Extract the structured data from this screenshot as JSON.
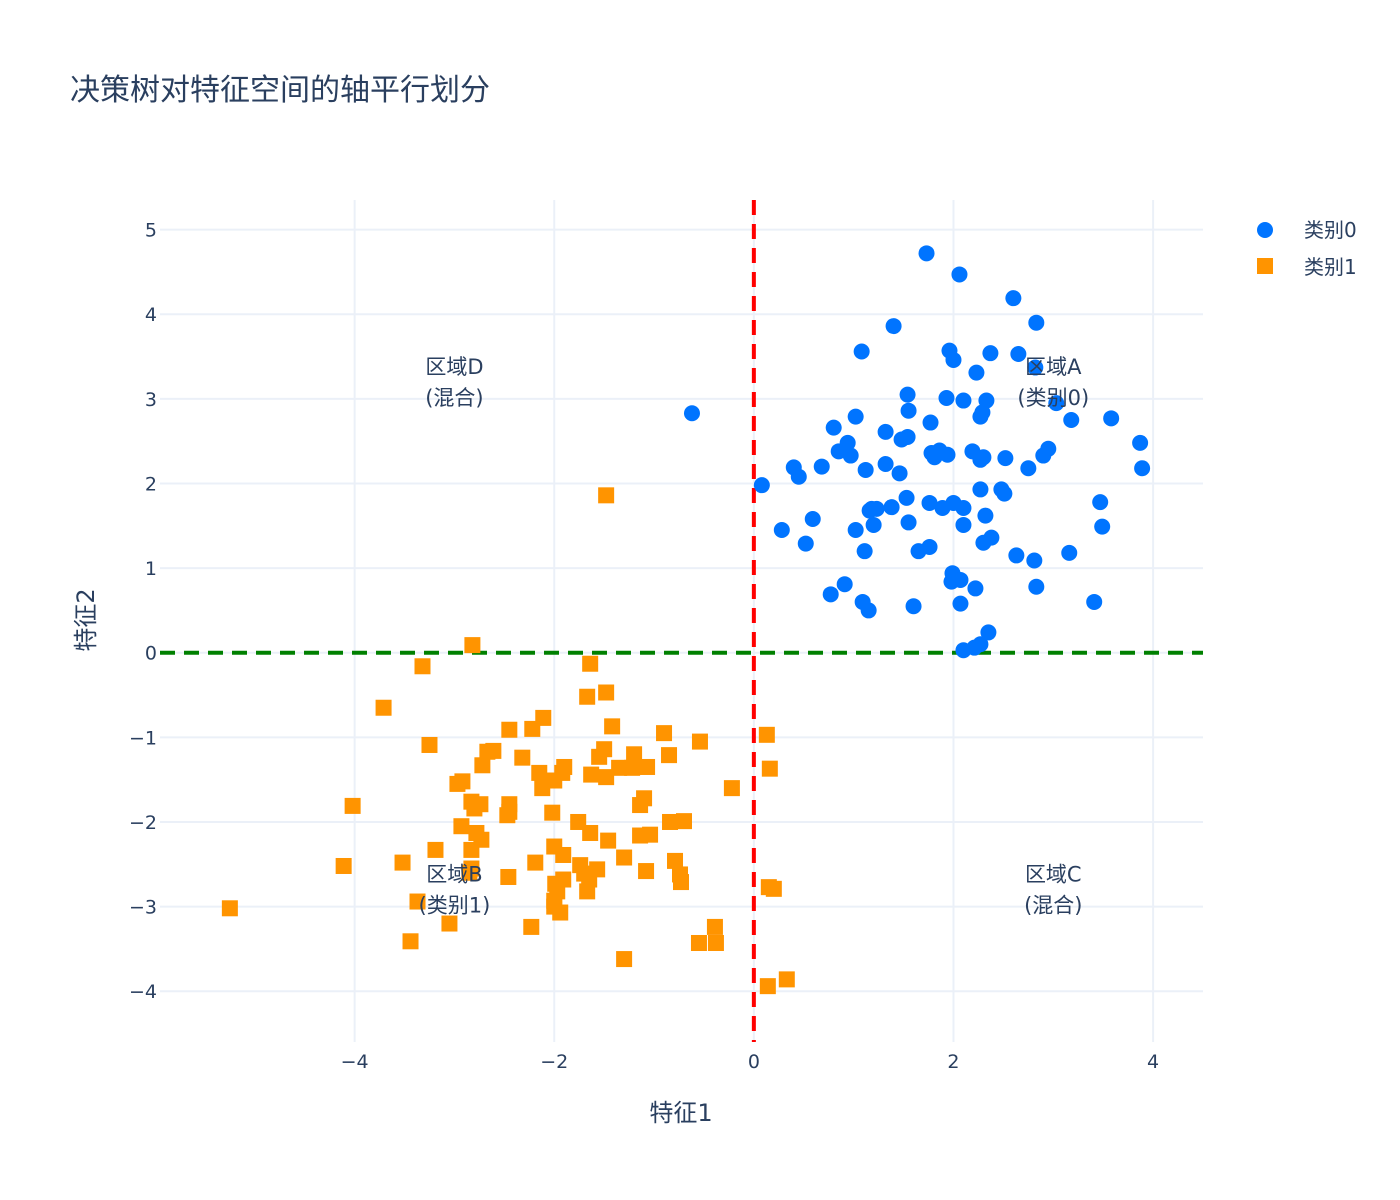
{
  "chart_data": {
    "type": "scatter",
    "title": "决策树对特征空间的轴平行划分",
    "xlabel": "特征1",
    "ylabel": "特征2",
    "xlim": [
      -5.95,
      4.5
    ],
    "ylim": [
      -4.6,
      5.35
    ],
    "x_ticks": [
      -4,
      -2,
      0,
      2,
      4
    ],
    "y_ticks": [
      -4,
      -3,
      -2,
      -1,
      0,
      1,
      2,
      3,
      4,
      5
    ],
    "x_tick_labels": [
      "−4",
      "−2",
      "0",
      "2",
      "4"
    ],
    "y_tick_labels": [
      "−4",
      "−3",
      "−2",
      "−1",
      "0",
      "1",
      "2",
      "3",
      "4",
      "5"
    ],
    "grid": true,
    "legend_position": "top-right",
    "splits": [
      {
        "orientation": "vertical",
        "value": 0,
        "color": "#ff0000",
        "style": "dashed"
      },
      {
        "orientation": "horizontal",
        "value": 0,
        "color": "#008000",
        "style": "dashed"
      }
    ],
    "regions": [
      {
        "line1": "区域A",
        "line2": "(类别0)",
        "x": 3,
        "y": 3.2
      },
      {
        "line1": "区域B",
        "line2": "(类别1)",
        "x": -3,
        "y": -2.8
      },
      {
        "line1": "区域C",
        "line2": "(混合)",
        "x": 3,
        "y": -2.8
      },
      {
        "line1": "区域D",
        "line2": "(混合)",
        "x": -3,
        "y": 3.2
      }
    ],
    "series": [
      {
        "name": "类别0",
        "marker": "circle",
        "color": "#0074ff",
        "points": [
          [
            1.73,
            4.72
          ],
          [
            2.06,
            4.47
          ],
          [
            2.6,
            4.19
          ],
          [
            2.83,
            3.9
          ],
          [
            1.4,
            3.86
          ],
          [
            1.08,
            3.56
          ],
          [
            1.96,
            3.57
          ],
          [
            2.0,
            3.46
          ],
          [
            2.37,
            3.54
          ],
          [
            2.65,
            3.53
          ],
          [
            2.82,
            3.37
          ],
          [
            2.23,
            3.31
          ],
          [
            1.54,
            3.05
          ],
          [
            1.93,
            3.01
          ],
          [
            2.1,
            2.98
          ],
          [
            2.33,
            2.98
          ],
          [
            3.03,
            2.95
          ],
          [
            1.55,
            2.86
          ],
          [
            2.27,
            2.79
          ],
          [
            2.29,
            2.84
          ],
          [
            3.18,
            2.75
          ],
          [
            3.58,
            2.77
          ],
          [
            1.02,
            2.79
          ],
          [
            1.77,
            2.72
          ],
          [
            0.8,
            2.66
          ],
          [
            1.32,
            2.61
          ],
          [
            1.48,
            2.52
          ],
          [
            1.54,
            2.55
          ],
          [
            0.94,
            2.48
          ],
          [
            3.87,
            2.48
          ],
          [
            2.95,
            2.41
          ],
          [
            0.85,
            2.38
          ],
          [
            0.97,
            2.33
          ],
          [
            1.78,
            2.36
          ],
          [
            1.86,
            2.39
          ],
          [
            1.94,
            2.34
          ],
          [
            1.81,
            2.31
          ],
          [
            2.19,
            2.38
          ],
          [
            2.3,
            2.31
          ],
          [
            2.27,
            2.28
          ],
          [
            2.52,
            2.3
          ],
          [
            2.9,
            2.33
          ],
          [
            0.4,
            2.19
          ],
          [
            0.68,
            2.2
          ],
          [
            1.12,
            2.16
          ],
          [
            1.32,
            2.23
          ],
          [
            1.46,
            2.12
          ],
          [
            2.75,
            2.18
          ],
          [
            3.89,
            2.18
          ],
          [
            0.45,
            2.08
          ],
          [
            0.08,
            1.98
          ],
          [
            2.27,
            1.93
          ],
          [
            2.48,
            1.93
          ],
          [
            2.51,
            1.88
          ],
          [
            1.53,
            1.83
          ],
          [
            1.76,
            1.77
          ],
          [
            2.0,
            1.77
          ],
          [
            3.47,
            1.78
          ],
          [
            1.18,
            1.7
          ],
          [
            1.23,
            1.7
          ],
          [
            1.38,
            1.72
          ],
          [
            1.89,
            1.71
          ],
          [
            2.1,
            1.71
          ],
          [
            1.16,
            1.68
          ],
          [
            0.59,
            1.58
          ],
          [
            1.55,
            1.54
          ],
          [
            2.32,
            1.62
          ],
          [
            1.2,
            1.51
          ],
          [
            2.1,
            1.51
          ],
          [
            3.49,
            1.49
          ],
          [
            1.02,
            1.45
          ],
          [
            0.28,
            1.45
          ],
          [
            2.38,
            1.36
          ],
          [
            0.52,
            1.29
          ],
          [
            2.3,
            1.3
          ],
          [
            1.76,
            1.25
          ],
          [
            1.65,
            1.2
          ],
          [
            1.11,
            1.2
          ],
          [
            3.16,
            1.18
          ],
          [
            2.63,
            1.15
          ],
          [
            2.81,
            1.09
          ],
          [
            1.99,
            0.94
          ],
          [
            1.98,
            0.84
          ],
          [
            2.07,
            0.86
          ],
          [
            0.91,
            0.81
          ],
          [
            2.22,
            0.76
          ],
          [
            2.83,
            0.78
          ],
          [
            0.77,
            0.69
          ],
          [
            1.09,
            0.6
          ],
          [
            1.15,
            0.5
          ],
          [
            1.6,
            0.55
          ],
          [
            2.07,
            0.58
          ],
          [
            3.41,
            0.6
          ],
          [
            2.35,
            0.24
          ],
          [
            2.21,
            0.06
          ],
          [
            2.27,
            0.1
          ],
          [
            2.1,
            0.03
          ],
          [
            -0.62,
            2.83
          ]
        ]
      },
      {
        "name": "类别1",
        "marker": "square",
        "color": "#ff9400",
        "points": [
          [
            -1.48,
            1.86
          ],
          [
            -2.82,
            0.09
          ],
          [
            -1.64,
            -0.13
          ],
          [
            -3.32,
            -0.16
          ],
          [
            -1.48,
            -0.47
          ],
          [
            -1.67,
            -0.52
          ],
          [
            -3.71,
            -0.65
          ],
          [
            -2.11,
            -0.77
          ],
          [
            -1.42,
            -0.87
          ],
          [
            -2.45,
            -0.91
          ],
          [
            -2.22,
            -0.9
          ],
          [
            0.13,
            -0.97
          ],
          [
            -0.9,
            -0.95
          ],
          [
            -3.25,
            -1.09
          ],
          [
            -0.54,
            -1.05
          ],
          [
            -2.67,
            -1.17
          ],
          [
            -2.61,
            -1.16
          ],
          [
            -1.5,
            -1.14
          ],
          [
            -2.32,
            -1.24
          ],
          [
            -1.55,
            -1.23
          ],
          [
            -1.2,
            -1.2
          ],
          [
            -0.85,
            -1.21
          ],
          [
            -2.72,
            -1.33
          ],
          [
            -1.9,
            -1.35
          ],
          [
            -1.35,
            -1.36
          ],
          [
            -1.22,
            -1.36
          ],
          [
            -1.07,
            -1.35
          ],
          [
            0.16,
            -1.37
          ],
          [
            -2.15,
            -1.42
          ],
          [
            -1.92,
            -1.42
          ],
          [
            -1.63,
            -1.44
          ],
          [
            -1.48,
            -1.47
          ],
          [
            -2.0,
            -1.51
          ],
          [
            -2.97,
            -1.55
          ],
          [
            -2.92,
            -1.52
          ],
          [
            -2.12,
            -1.6
          ],
          [
            -0.22,
            -1.6
          ],
          [
            -1.1,
            -1.72
          ],
          [
            -2.83,
            -1.76
          ],
          [
            -2.74,
            -1.79
          ],
          [
            -2.45,
            -1.79
          ],
          [
            -2.8,
            -1.84
          ],
          [
            -1.14,
            -1.8
          ],
          [
            -2.45,
            -1.88
          ],
          [
            -2.47,
            -1.92
          ],
          [
            -4.02,
            -1.81
          ],
          [
            -2.02,
            -1.89
          ],
          [
            -1.76,
            -2.0
          ],
          [
            -0.84,
            -2.0
          ],
          [
            -0.7,
            -1.99
          ],
          [
            -2.93,
            -2.05
          ],
          [
            -1.64,
            -2.13
          ],
          [
            -2.78,
            -2.13
          ],
          [
            -1.14,
            -2.16
          ],
          [
            -1.04,
            -2.15
          ],
          [
            -2.73,
            -2.21
          ],
          [
            -1.46,
            -2.22
          ],
          [
            -2.0,
            -2.29
          ],
          [
            -3.19,
            -2.33
          ],
          [
            -2.83,
            -2.33
          ],
          [
            -1.91,
            -2.39
          ],
          [
            -1.3,
            -2.42
          ],
          [
            -3.52,
            -2.48
          ],
          [
            -2.19,
            -2.48
          ],
          [
            -0.79,
            -2.46
          ],
          [
            -1.74,
            -2.51
          ],
          [
            -4.11,
            -2.52
          ],
          [
            -2.83,
            -2.55
          ],
          [
            -1.57,
            -2.56
          ],
          [
            -2.85,
            -2.6
          ],
          [
            -1.08,
            -2.58
          ],
          [
            -0.74,
            -2.62
          ],
          [
            -2.46,
            -2.65
          ],
          [
            -1.91,
            -2.68
          ],
          [
            -1.65,
            -2.68
          ],
          [
            -1.7,
            -2.61
          ],
          [
            -1.99,
            -2.73
          ],
          [
            -0.73,
            -2.71
          ],
          [
            0.15,
            -2.77
          ],
          [
            0.2,
            -2.79
          ],
          [
            -1.67,
            -2.82
          ],
          [
            -1.97,
            -2.82
          ],
          [
            -3.37,
            -2.94
          ],
          [
            -2.0,
            -2.93
          ],
          [
            -5.25,
            -3.02
          ],
          [
            -2.0,
            -3.0
          ],
          [
            -1.94,
            -3.07
          ],
          [
            -3.05,
            -3.2
          ],
          [
            -2.23,
            -3.24
          ],
          [
            -0.39,
            -3.24
          ],
          [
            -3.44,
            -3.41
          ],
          [
            -0.38,
            -3.43
          ],
          [
            -0.55,
            -3.43
          ],
          [
            -1.3,
            -3.62
          ],
          [
            0.33,
            -3.86
          ],
          [
            0.14,
            -3.94
          ]
        ]
      }
    ]
  }
}
